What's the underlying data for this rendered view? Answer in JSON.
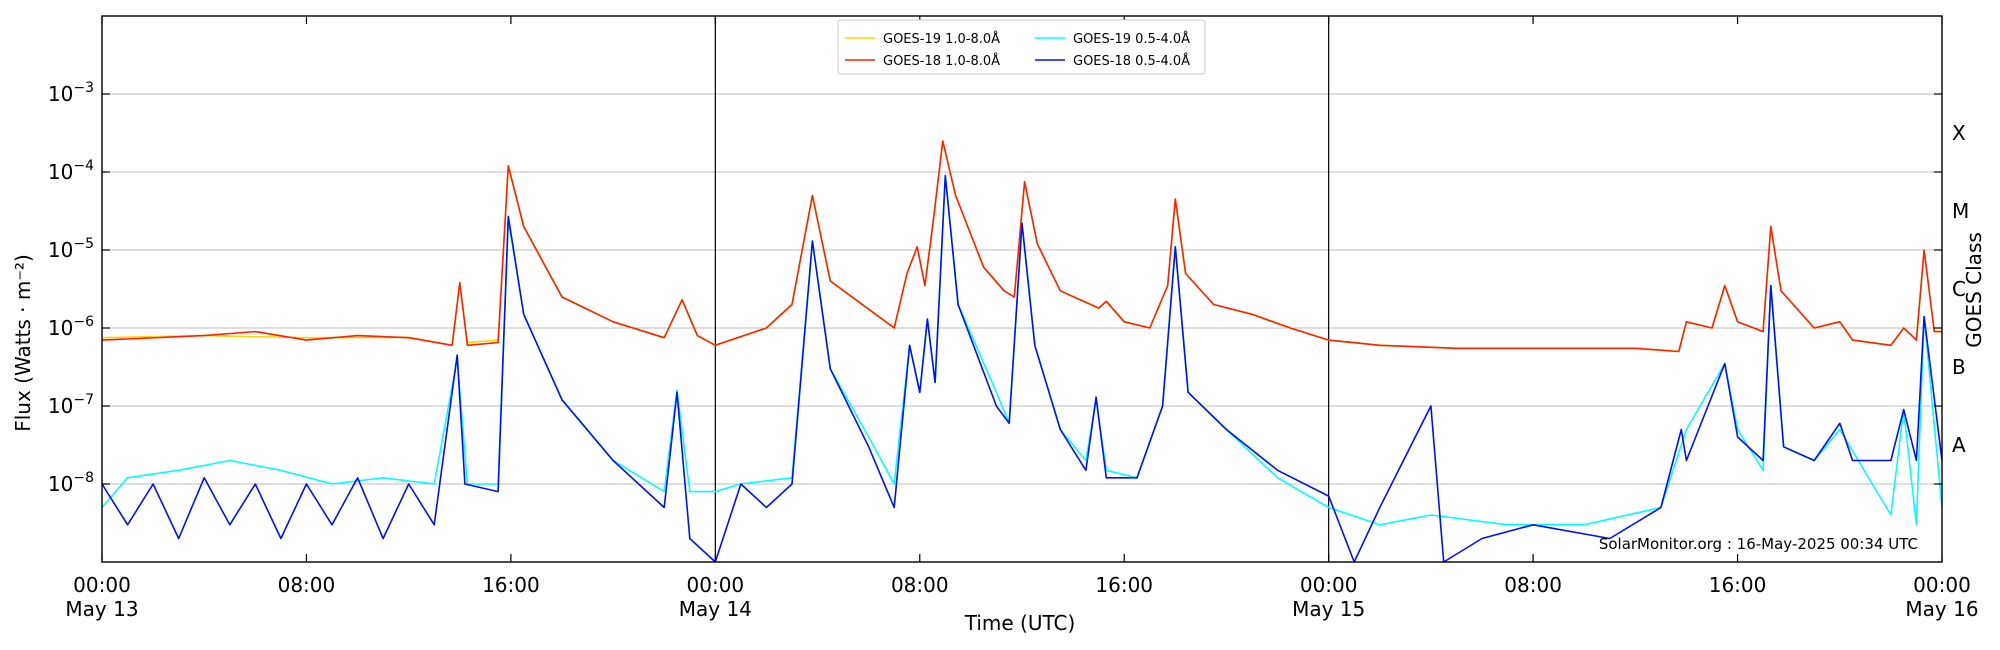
{
  "chart_data": {
    "type": "line",
    "title": "",
    "xlabel": "Time (UTC)",
    "ylabel": "Flux (Watts · m⁻²)",
    "ylabel_right": "GOES Class",
    "yscale": "log",
    "ylim": [
      1e-09,
      0.01
    ],
    "xlim_hours": [
      0,
      72
    ],
    "grid": "horizontal",
    "legend_position": "top-center",
    "x_ticks": [
      {
        "h": 0,
        "time": "00:00",
        "date": "May 13"
      },
      {
        "h": 8,
        "time": "08:00",
        "date": ""
      },
      {
        "h": 16,
        "time": "16:00",
        "date": ""
      },
      {
        "h": 24,
        "time": "00:00",
        "date": "May 14"
      },
      {
        "h": 32,
        "time": "08:00",
        "date": ""
      },
      {
        "h": 40,
        "time": "16:00",
        "date": ""
      },
      {
        "h": 48,
        "time": "00:00",
        "date": "May 15"
      },
      {
        "h": 56,
        "time": "08:00",
        "date": ""
      },
      {
        "h": 64,
        "time": "16:00",
        "date": ""
      },
      {
        "h": 72,
        "time": "00:00",
        "date": "May 16"
      }
    ],
    "day_dividers_hours": [
      24,
      48
    ],
    "y_ticks": [
      {
        "exp": -8,
        "label": "10",
        "sup": "−8"
      },
      {
        "exp": -7,
        "label": "10",
        "sup": "−7"
      },
      {
        "exp": -6,
        "label": "10",
        "sup": "−6"
      },
      {
        "exp": -5,
        "label": "10",
        "sup": "−5"
      },
      {
        "exp": -4,
        "label": "10",
        "sup": "−4"
      },
      {
        "exp": -3,
        "label": "10",
        "sup": "−3"
      }
    ],
    "goes_classes": [
      {
        "label": "A",
        "exp": -7.5
      },
      {
        "label": "B",
        "exp": -6.5
      },
      {
        "label": "C",
        "exp": -5.5
      },
      {
        "label": "M",
        "exp": -4.5
      },
      {
        "label": "X",
        "exp": -3.5
      }
    ],
    "series": [
      {
        "name": "GOES-19 1.0-8.0Å",
        "color": "#ffd700",
        "points": [
          [
            0,
            7.5e-07
          ],
          [
            4,
            8e-07
          ],
          [
            8,
            7.5e-07
          ],
          [
            12,
            7.6e-07
          ],
          [
            13.7,
            6e-07
          ],
          [
            14,
            3.8e-06
          ],
          [
            14.3,
            6.5e-07
          ],
          [
            15.5,
            7e-07
          ],
          [
            15.9,
            0.00012
          ],
          [
            16.5,
            2e-05
          ],
          [
            18,
            2.5e-06
          ],
          [
            20,
            1.2e-06
          ],
          [
            22,
            7.5e-07
          ],
          [
            22.7,
            2.3e-06
          ],
          [
            23.3,
            8e-07
          ],
          [
            24,
            6e-07
          ],
          [
            26,
            1e-06
          ],
          [
            27,
            2e-06
          ],
          [
            27.8,
            5e-05
          ],
          [
            28.5,
            4e-06
          ],
          [
            31,
            1e-06
          ],
          [
            31.5,
            5e-06
          ],
          [
            31.9,
            1.1e-05
          ],
          [
            32.2,
            3.5e-06
          ],
          [
            32.5,
            2e-05
          ],
          [
            32.9,
            0.00025
          ],
          [
            33.4,
            5e-05
          ],
          [
            34.5,
            6e-06
          ],
          [
            35.3,
            3e-06
          ],
          [
            35.7,
            2.5e-06
          ],
          [
            36.1,
            7.5e-05
          ],
          [
            36.6,
            1.2e-05
          ],
          [
            37.5,
            3e-06
          ],
          [
            39,
            1.8e-06
          ],
          [
            39.3,
            2.2e-06
          ],
          [
            40,
            1.2e-06
          ],
          [
            41,
            1e-06
          ],
          [
            41.7,
            3.5e-06
          ],
          [
            42,
            4.5e-05
          ],
          [
            42.4,
            5e-06
          ],
          [
            43.5,
            2e-06
          ],
          [
            45,
            1.5e-06
          ],
          [
            46.5,
            1e-06
          ],
          [
            48,
            7e-07
          ],
          [
            50,
            6e-07
          ],
          [
            53,
            5.5e-07
          ],
          [
            56,
            5.5e-07
          ],
          [
            60,
            5.5e-07
          ],
          [
            61.7,
            5e-07
          ],
          [
            62,
            1.2e-06
          ],
          [
            63,
            1e-06
          ],
          [
            63.5,
            3.5e-06
          ],
          [
            64,
            1.2e-06
          ],
          [
            65,
            9e-07
          ],
          [
            65.3,
            2e-05
          ],
          [
            65.7,
            3e-06
          ],
          [
            67,
            1e-06
          ],
          [
            68,
            1.2e-06
          ],
          [
            68.5,
            7e-07
          ],
          [
            70,
            6e-07
          ],
          [
            70.5,
            1e-06
          ],
          [
            71,
            7e-07
          ],
          [
            71.3,
            1e-05
          ],
          [
            71.7,
            9e-07
          ],
          [
            72,
            9e-07
          ]
        ]
      },
      {
        "name": "GOES-18 1.0-8.0Å",
        "color": "#ff2000",
        "points": [
          [
            0,
            7e-07
          ],
          [
            4,
            8e-07
          ],
          [
            6,
            9e-07
          ],
          [
            8,
            7e-07
          ],
          [
            10,
            8e-07
          ],
          [
            12,
            7.5e-07
          ],
          [
            13.7,
            6e-07
          ],
          [
            14,
            3.8e-06
          ],
          [
            14.3,
            6e-07
          ],
          [
            15.5,
            6.5e-07
          ],
          [
            15.9,
            0.00012
          ],
          [
            16.5,
            2e-05
          ],
          [
            18,
            2.5e-06
          ],
          [
            20,
            1.2e-06
          ],
          [
            22,
            7.5e-07
          ],
          [
            22.7,
            2.3e-06
          ],
          [
            23.3,
            8e-07
          ],
          [
            24,
            6e-07
          ],
          [
            26,
            1e-06
          ],
          [
            27,
            2e-06
          ],
          [
            27.8,
            5e-05
          ],
          [
            28.5,
            4e-06
          ],
          [
            31,
            1e-06
          ],
          [
            31.5,
            5e-06
          ],
          [
            31.9,
            1.1e-05
          ],
          [
            32.2,
            3.5e-06
          ],
          [
            32.5,
            2e-05
          ],
          [
            32.9,
            0.00025
          ],
          [
            33.4,
            5e-05
          ],
          [
            34.5,
            6e-06
          ],
          [
            35.3,
            3e-06
          ],
          [
            35.7,
            2.5e-06
          ],
          [
            36.1,
            7.5e-05
          ],
          [
            36.6,
            1.2e-05
          ],
          [
            37.5,
            3e-06
          ],
          [
            39,
            1.8e-06
          ],
          [
            39.3,
            2.2e-06
          ],
          [
            40,
            1.2e-06
          ],
          [
            41,
            1e-06
          ],
          [
            41.7,
            3.5e-06
          ],
          [
            42,
            4.5e-05
          ],
          [
            42.4,
            5e-06
          ],
          [
            43.5,
            2e-06
          ],
          [
            45,
            1.5e-06
          ],
          [
            46.5,
            1e-06
          ],
          [
            48,
            7e-07
          ],
          [
            50,
            6e-07
          ],
          [
            53,
            5.5e-07
          ],
          [
            56,
            5.5e-07
          ],
          [
            60,
            5.5e-07
          ],
          [
            61.7,
            5e-07
          ],
          [
            62,
            1.2e-06
          ],
          [
            63,
            1e-06
          ],
          [
            63.5,
            3.5e-06
          ],
          [
            64,
            1.2e-06
          ],
          [
            65,
            9e-07
          ],
          [
            65.3,
            2e-05
          ],
          [
            65.7,
            3e-06
          ],
          [
            67,
            1e-06
          ],
          [
            68,
            1.2e-06
          ],
          [
            68.5,
            7e-07
          ],
          [
            70,
            6e-07
          ],
          [
            70.5,
            1e-06
          ],
          [
            71,
            7e-07
          ],
          [
            71.3,
            1e-05
          ],
          [
            71.7,
            9e-07
          ],
          [
            72,
            9e-07
          ]
        ]
      },
      {
        "name": "GOES-19 0.5-4.0Å",
        "color": "#00ffff",
        "points": [
          [
            0,
            5e-09
          ],
          [
            1,
            1.2e-08
          ],
          [
            3,
            1.5e-08
          ],
          [
            5,
            2e-08
          ],
          [
            7,
            1.5e-08
          ],
          [
            9,
            1e-08
          ],
          [
            11,
            1.2e-08
          ],
          [
            13,
            1e-08
          ],
          [
            13.9,
            4e-07
          ],
          [
            14.3,
            1e-08
          ],
          [
            15.5,
            1e-08
          ],
          [
            15.9,
            2.5e-05
          ],
          [
            16.5,
            1.5e-06
          ],
          [
            18,
            1.2e-07
          ],
          [
            20,
            2e-08
          ],
          [
            22,
            8e-09
          ],
          [
            22.5,
            1.6e-07
          ],
          [
            23,
            8e-09
          ],
          [
            24,
            8e-09
          ],
          [
            25,
            1e-08
          ],
          [
            27,
            1.2e-08
          ],
          [
            27.8,
            1.3e-05
          ],
          [
            28.5,
            3e-07
          ],
          [
            30,
            4e-08
          ],
          [
            31,
            1e-08
          ],
          [
            31.6,
            6e-07
          ],
          [
            32,
            1.5e-07
          ],
          [
            32.3,
            1.3e-06
          ],
          [
            32.6,
            2e-07
          ],
          [
            33,
            9e-05
          ],
          [
            33.5,
            2e-06
          ],
          [
            35,
            1.5e-07
          ],
          [
            35.5,
            6e-08
          ],
          [
            36,
            2.2e-05
          ],
          [
            36.5,
            6e-07
          ],
          [
            37.5,
            5e-08
          ],
          [
            38.5,
            2e-08
          ],
          [
            38.9,
            1.2e-07
          ],
          [
            39.3,
            1.5e-08
          ],
          [
            40.5,
            1.2e-08
          ],
          [
            41.5,
            1e-07
          ],
          [
            42,
            1.1e-05
          ],
          [
            42.5,
            1.5e-07
          ],
          [
            44,
            5e-08
          ],
          [
            46,
            1.2e-08
          ],
          [
            48,
            5e-09
          ],
          [
            50,
            3e-09
          ],
          [
            52,
            4e-09
          ],
          [
            55,
            3e-09
          ],
          [
            58,
            3e-09
          ],
          [
            61,
            5e-09
          ],
          [
            62,
            5e-08
          ],
          [
            63.5,
            3.5e-07
          ],
          [
            64,
            5e-08
          ],
          [
            65,
            1.5e-08
          ],
          [
            65.3,
            3.5e-06
          ],
          [
            65.8,
            3e-08
          ],
          [
            67,
            2e-08
          ],
          [
            68,
            5e-08
          ],
          [
            70,
            4e-09
          ],
          [
            70.5,
            9e-08
          ],
          [
            71,
            3e-09
          ],
          [
            71.3,
            1.4e-06
          ],
          [
            72,
            5e-09
          ]
        ]
      },
      {
        "name": "GOES-18 0.5-4.0Å",
        "color": "#0010ff",
        "points": [
          [
            0,
            1e-08
          ],
          [
            1,
            3e-09
          ],
          [
            2,
            1e-08
          ],
          [
            3,
            2e-09
          ],
          [
            4,
            1.2e-08
          ],
          [
            5,
            3e-09
          ],
          [
            6,
            1e-08
          ],
          [
            7,
            2e-09
          ],
          [
            8,
            1e-08
          ],
          [
            9,
            3e-09
          ],
          [
            10,
            1.2e-08
          ],
          [
            11,
            2e-09
          ],
          [
            12,
            1e-08
          ],
          [
            13,
            3e-09
          ],
          [
            13.9,
            4.5e-07
          ],
          [
            14.2,
            1e-08
          ],
          [
            15.5,
            8e-09
          ],
          [
            15.9,
            2.7e-05
          ],
          [
            16.5,
            1.5e-06
          ],
          [
            18,
            1.2e-07
          ],
          [
            20,
            2e-08
          ],
          [
            22,
            5e-09
          ],
          [
            22.5,
            1.5e-07
          ],
          [
            23,
            2e-09
          ],
          [
            24,
            1e-09
          ],
          [
            25,
            1e-08
          ],
          [
            26,
            5e-09
          ],
          [
            27,
            1e-08
          ],
          [
            27.8,
            1.3e-05
          ],
          [
            28.5,
            3e-07
          ],
          [
            30,
            3e-08
          ],
          [
            31,
            5e-09
          ],
          [
            31.6,
            6e-07
          ],
          [
            32,
            1.5e-07
          ],
          [
            32.3,
            1.3e-06
          ],
          [
            32.6,
            2e-07
          ],
          [
            33,
            9e-05
          ],
          [
            33.5,
            2e-06
          ],
          [
            35,
            1e-07
          ],
          [
            35.5,
            6e-08
          ],
          [
            36,
            2.2e-05
          ],
          [
            36.5,
            6e-07
          ],
          [
            37.5,
            5e-08
          ],
          [
            38.5,
            1.5e-08
          ],
          [
            38.9,
            1.3e-07
          ],
          [
            39.3,
            1.2e-08
          ],
          [
            40.5,
            1.2e-08
          ],
          [
            41.5,
            1e-07
          ],
          [
            42,
            1.1e-05
          ],
          [
            42.5,
            1.5e-07
          ],
          [
            44,
            5e-08
          ],
          [
            46,
            1.5e-08
          ],
          [
            48,
            7e-09
          ],
          [
            49,
            1e-09
          ],
          [
            50,
            5e-09
          ],
          [
            52,
            1e-07
          ],
          [
            52.5,
            1e-09
          ],
          [
            54,
            2e-09
          ],
          [
            56,
            3e-09
          ],
          [
            59,
            2e-09
          ],
          [
            61,
            5e-09
          ],
          [
            61.8,
            5e-08
          ],
          [
            62,
            2e-08
          ],
          [
            63.5,
            3.5e-07
          ],
          [
            64,
            4e-08
          ],
          [
            65,
            2e-08
          ],
          [
            65.3,
            3.5e-06
          ],
          [
            65.8,
            3e-08
          ],
          [
            67,
            2e-08
          ],
          [
            68,
            6e-08
          ],
          [
            68.5,
            2e-08
          ],
          [
            70,
            2e-08
          ],
          [
            70.5,
            9e-08
          ],
          [
            71,
            2e-08
          ],
          [
            71.3,
            1.4e-06
          ],
          [
            72,
            2e-08
          ]
        ]
      }
    ],
    "annotation": "SolarMonitor.org : 16-May-2025 00:34 UTC"
  }
}
